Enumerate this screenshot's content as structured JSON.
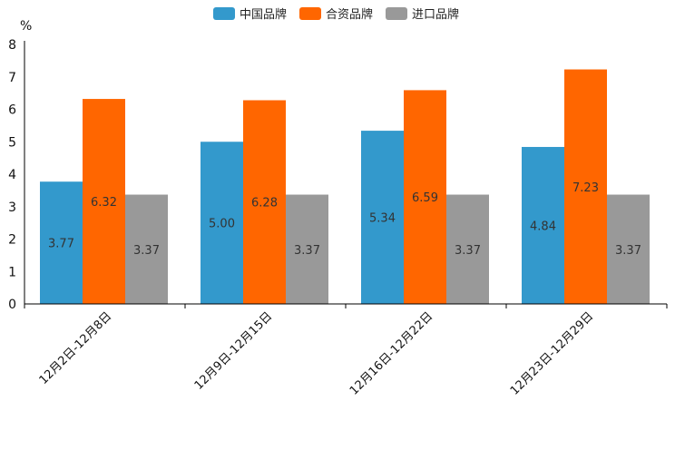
{
  "chart_data": {
    "type": "bar",
    "title": "",
    "ylabel": "%",
    "xlabel": "",
    "ylim": [
      0,
      8
    ],
    "yticks": [
      "0",
      "1",
      "2",
      "3",
      "4",
      "5",
      "6",
      "7",
      "8"
    ],
    "categories": [
      "12月2日-12月8日",
      "12月9日-12月15日",
      "12月16日-12月22日",
      "12月23日-12月29日"
    ],
    "series": [
      {
        "name": "中国品牌",
        "color": "#3399cc",
        "values": [
          3.77,
          5.0,
          5.34,
          4.84
        ],
        "labels": [
          "3.77",
          "5.00",
          "5.34",
          "4.84"
        ]
      },
      {
        "name": "合资品牌",
        "color": "#ff6600",
        "values": [
          6.32,
          6.28,
          6.59,
          7.23
        ],
        "labels": [
          "6.32",
          "6.28",
          "6.59",
          "7.23"
        ]
      },
      {
        "name": "进口品牌",
        "color": "#999999",
        "values": [
          3.37,
          3.37,
          3.37,
          3.37
        ],
        "labels": [
          "3.37",
          "3.37",
          "3.37",
          "3.37"
        ]
      }
    ],
    "legend_position": "top-center",
    "grid": false
  }
}
